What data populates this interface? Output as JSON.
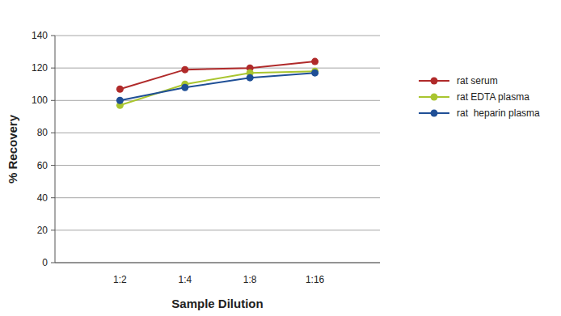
{
  "chart_data": {
    "type": "line",
    "x_label": "Sample Dilution",
    "y_label": "% Recovery",
    "categories": [
      "1:2",
      "1:4",
      "1:8",
      "1:16"
    ],
    "series": [
      {
        "name": "rat serum",
        "color": "#b02a2a",
        "marker": "circle",
        "values": [
          107,
          119,
          120,
          124
        ]
      },
      {
        "name": "rat EDTA plasma",
        "color": "#a9c52f",
        "marker": "circle",
        "values": [
          97,
          110,
          117,
          118
        ]
      },
      {
        "name": "rat  heparin plasma",
        "color": "#1f4f96",
        "marker": "circle",
        "values": [
          100,
          108,
          114,
          117
        ]
      }
    ],
    "ylim": [
      0,
      140
    ],
    "yticks": [
      0,
      20,
      40,
      60,
      80,
      100,
      120,
      140
    ],
    "grid": true,
    "legend": "right"
  }
}
